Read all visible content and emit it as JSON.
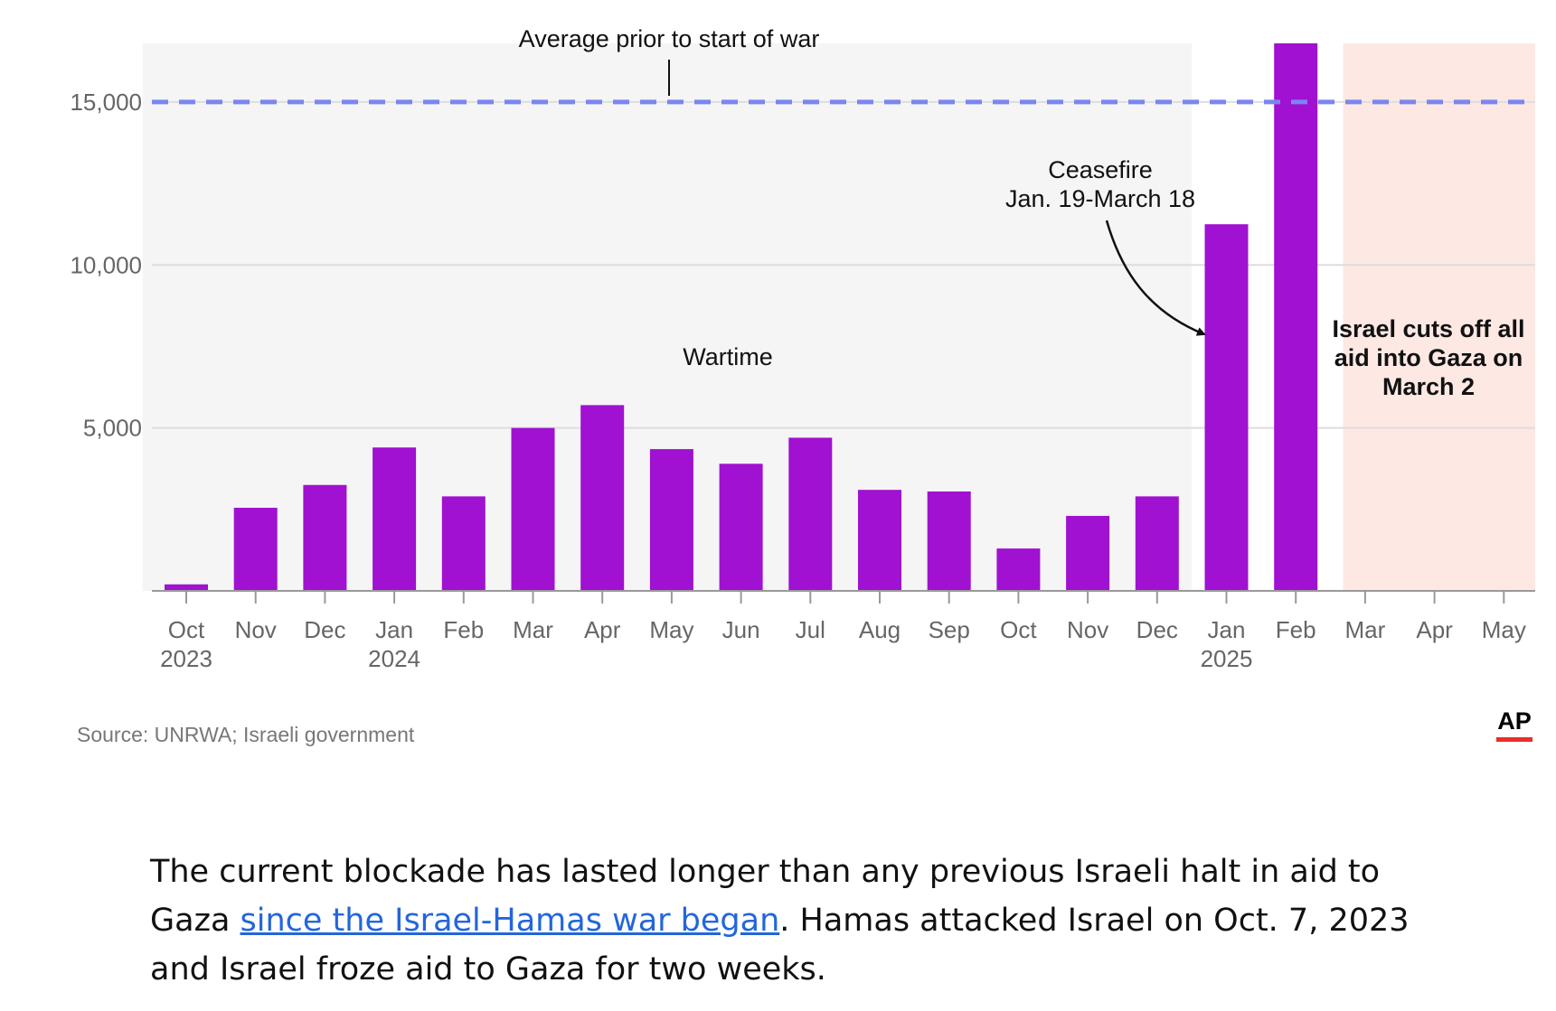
{
  "chart_data": {
    "type": "bar",
    "categories": [
      "Oct 2023",
      "Nov",
      "Dec",
      "Jan 2024",
      "Feb",
      "Mar",
      "Apr",
      "May",
      "Jun",
      "Jul",
      "Aug",
      "Sep",
      "Oct",
      "Nov",
      "Dec",
      "Jan 2025",
      "Feb",
      "Mar",
      "Apr",
      "May"
    ],
    "tick_lines": [
      [
        "Oct",
        "2023"
      ],
      [
        "Nov"
      ],
      [
        "Dec"
      ],
      [
        "Jan",
        "2024"
      ],
      [
        "Feb"
      ],
      [
        "Mar"
      ],
      [
        "Apr"
      ],
      [
        "May"
      ],
      [
        "Jun"
      ],
      [
        "Jul"
      ],
      [
        "Aug"
      ],
      [
        "Sep"
      ],
      [
        "Oct"
      ],
      [
        "Nov"
      ],
      [
        "Dec"
      ],
      [
        "Jan",
        "2025"
      ],
      [
        "Feb"
      ],
      [
        "Mar"
      ],
      [
        "Apr"
      ],
      [
        "May"
      ]
    ],
    "values": [
      200,
      2550,
      3250,
      4400,
      2900,
      5000,
      5700,
      4350,
      3900,
      4700,
      3100,
      3050,
      1300,
      2300,
      2900,
      11250,
      16800,
      null,
      null,
      null
    ],
    "y_ticks": [
      5000,
      10000,
      15000
    ],
    "y_tick_labels": [
      "5,000",
      "10,000",
      "15,000"
    ],
    "ylim": [
      0,
      16800
    ],
    "bar_color": "#a011d1",
    "reference_line": {
      "value": 15000,
      "label": "Average prior to start of war",
      "color": "#7b86f0"
    },
    "regions": [
      {
        "name": "wartime",
        "label": "Wartime",
        "from": 0,
        "to": 14,
        "color": "#f5f5f5"
      },
      {
        "name": "blockade",
        "label_lines": [
          "Israel cuts off all",
          "aid into Gaza on",
          "March 2"
        ],
        "from": 17,
        "to": 19,
        "color": "#fde8e4"
      }
    ],
    "annotations": {
      "ceasefire_lines": [
        "Ceasefire",
        "Jan. 19-March 18"
      ]
    }
  },
  "footer": {
    "source": "Source: UNRWA; Israeli government",
    "logo": "AP"
  },
  "body": {
    "link": "since the Israel-Hamas war began",
    "before": "The current blockade has lasted longer than any previous Israeli halt in aid to Gaza ",
    "after": ". Hamas attacked Israel on Oct. 7, 2023 and Israel froze aid to Gaza for two weeks."
  }
}
